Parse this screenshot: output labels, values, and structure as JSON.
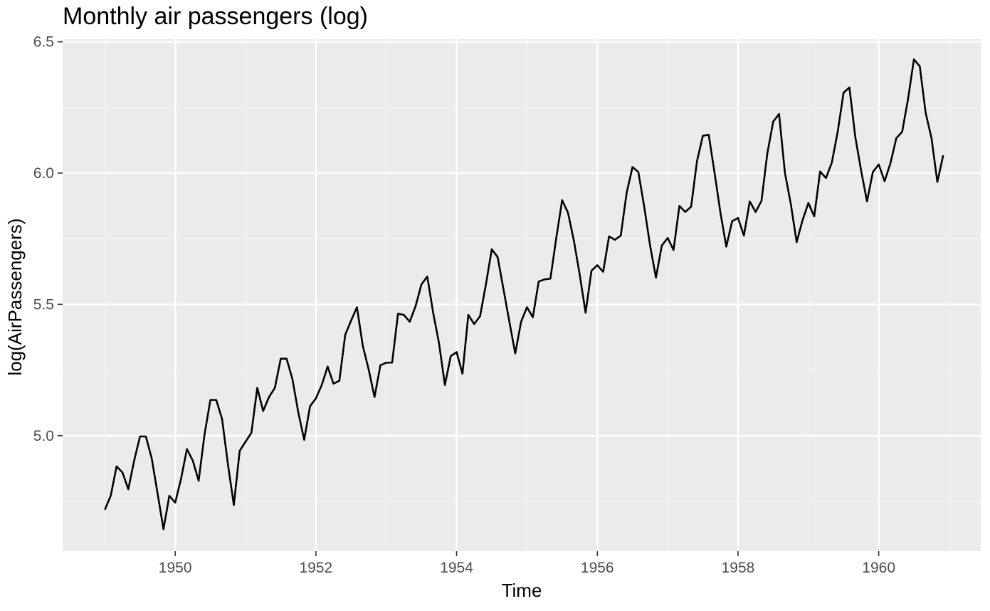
{
  "chart_data": {
    "type": "line",
    "title": "Monthly air passengers (log)",
    "xlabel": "Time",
    "ylabel": "log(AirPassengers)",
    "xlim": [
      1948.4,
      1961.45
    ],
    "ylim": [
      4.56,
      6.51
    ],
    "x_ticks": [
      1950,
      1952,
      1954,
      1956,
      1958,
      1960
    ],
    "x_tick_labels": [
      "1950",
      "1952",
      "1954",
      "1956",
      "1958",
      "1960"
    ],
    "x_minor_ticks": [
      1949,
      1951,
      1953,
      1955,
      1957,
      1959,
      1961
    ],
    "y_ticks": [
      5.0,
      5.5,
      6.0,
      6.5
    ],
    "y_tick_labels": [
      "5.0",
      "5.5",
      "6.0",
      "6.5"
    ],
    "y_minor_ticks": [
      4.75,
      5.25,
      5.75,
      6.25
    ],
    "grid": true,
    "colors": {
      "panel_background": "#ebebeb",
      "grid_major": "#ffffff",
      "grid_minor": "#f5f5f5",
      "line": "#000000"
    },
    "x_start": 1949.0,
    "x_step": 0.083333,
    "series": [
      {
        "values": [
          4.718,
          4.771,
          4.883,
          4.86,
          4.796,
          4.905,
          4.997,
          4.997,
          4.913,
          4.779,
          4.644,
          4.771,
          4.745,
          4.836,
          4.949,
          4.905,
          4.828,
          5.004,
          5.136,
          5.136,
          5.063,
          4.89,
          4.736,
          4.942,
          4.977,
          5.011,
          5.182,
          5.094,
          5.147,
          5.182,
          5.293,
          5.293,
          5.215,
          5.088,
          4.984,
          5.112,
          5.142,
          5.193,
          5.263,
          5.198,
          5.209,
          5.384,
          5.438,
          5.489,
          5.342,
          5.252,
          5.147,
          5.268,
          5.278,
          5.278,
          5.464,
          5.46,
          5.434,
          5.493,
          5.576,
          5.606,
          5.468,
          5.352,
          5.193,
          5.303,
          5.318,
          5.236,
          5.46,
          5.425,
          5.455,
          5.576,
          5.71,
          5.68,
          5.557,
          5.434,
          5.313,
          5.434,
          5.489,
          5.451,
          5.587,
          5.595,
          5.598,
          5.753,
          5.897,
          5.849,
          5.743,
          5.613,
          5.468,
          5.628,
          5.649,
          5.624,
          5.759,
          5.746,
          5.762,
          5.924,
          6.023,
          6.004,
          5.872,
          5.724,
          5.602,
          5.724,
          5.753,
          5.707,
          5.875,
          5.852,
          5.872,
          6.045,
          6.142,
          6.146,
          6.001,
          5.849,
          5.72,
          5.817,
          5.829,
          5.762,
          5.892,
          5.852,
          5.894,
          6.075,
          6.196,
          6.225,
          6.001,
          5.883,
          5.737,
          5.82,
          5.886,
          5.835,
          6.006,
          5.981,
          6.04,
          6.157,
          6.306,
          6.326,
          6.138,
          6.009,
          5.892,
          6.004,
          6.033,
          5.969,
          6.038,
          6.133,
          6.157,
          6.282,
          6.433,
          6.407,
          6.23,
          6.133,
          5.966,
          6.068
        ]
      }
    ]
  }
}
